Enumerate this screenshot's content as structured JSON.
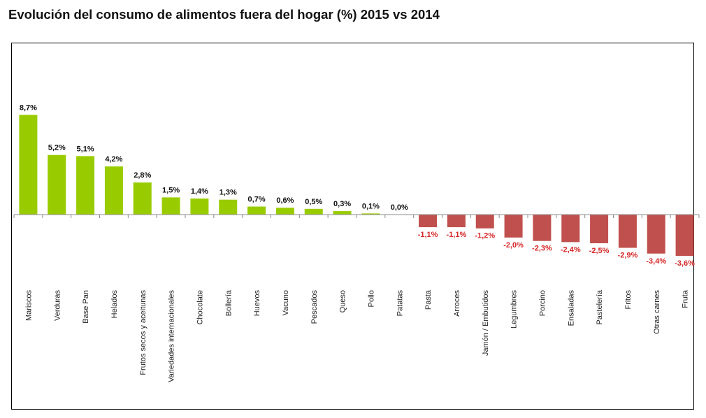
{
  "chart_data": {
    "type": "bar",
    "title": "Evolución del consumo de alimentos fuera del hogar (%) 2015 vs 2014",
    "xlabel": "",
    "ylabel": "",
    "ylim": [
      -3.6,
      8.7
    ],
    "grid": false,
    "legend": "none",
    "categories": [
      "Mariscos",
      "Verduras",
      "Base Pan",
      "Helados",
      "Frutos secos y aceitunas",
      "Variedades internacionales",
      "Chocolate",
      "Bollería",
      "Huevos",
      "Vacuno",
      "Pescados",
      "Queso",
      "Pollo",
      "Patatas",
      "Pasta",
      "Arroces",
      "Jamón / Embutidos",
      "Legumbres",
      "Porcino",
      "Ensaladas",
      "Pastelería",
      "Fritos",
      "Otras carnes",
      "Fruta"
    ],
    "values": [
      8.7,
      5.2,
      5.1,
      4.2,
      2.8,
      1.5,
      1.4,
      1.3,
      0.7,
      0.6,
      0.5,
      0.3,
      0.1,
      0.0,
      -1.1,
      -1.1,
      -1.2,
      -2.0,
      -2.3,
      -2.4,
      -2.5,
      -2.9,
      -3.4,
      -3.6
    ],
    "value_labels": [
      "8,7%",
      "5,2%",
      "5,1%",
      "4,2%",
      "2,8%",
      "1,5%",
      "1,4%",
      "1,3%",
      "0,7%",
      "0,6%",
      "0,5%",
      "0,3%",
      "0,1%",
      "0,0%",
      "-1,1%",
      "-1,1%",
      "-1,2%",
      "-2,0%",
      "-2,3%",
      "-2,4%",
      "-2,5%",
      "-2,9%",
      "-3,4%",
      "-3,6%"
    ],
    "colors": {
      "positive": "#99cc00",
      "negative": "#c0504d",
      "negative_label": "#d62728",
      "positive_label": "#111111",
      "axis": "#8c8c8c"
    }
  }
}
